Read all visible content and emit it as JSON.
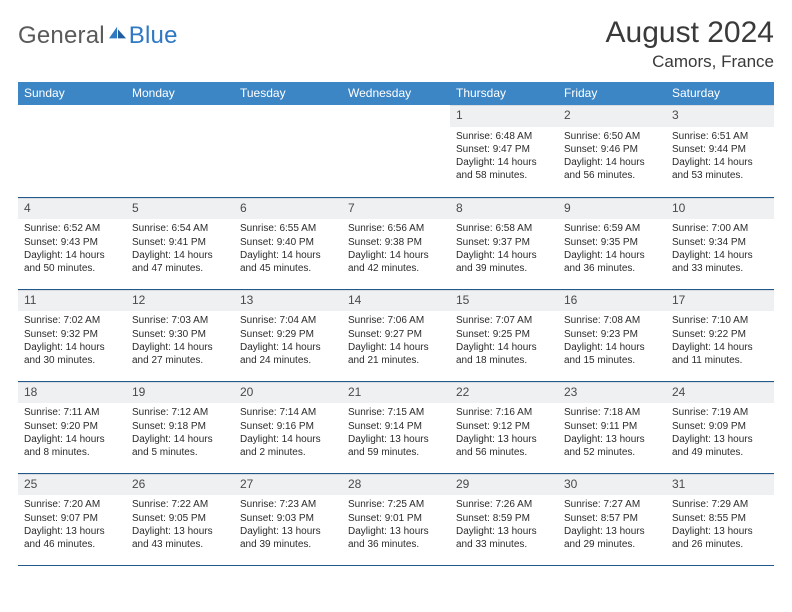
{
  "brand": {
    "word1": "General",
    "word2": "Blue"
  },
  "title": {
    "month": "August 2024",
    "location": "Camors, France"
  },
  "colors": {
    "header_bg": "#3d86c6",
    "header_fg": "#ffffff",
    "daynum_bg": "#eef0f2",
    "rule": "#22598c",
    "logo_gray": "#5a5a5a",
    "logo_blue": "#2f78c2"
  },
  "weekdays": [
    "Sunday",
    "Monday",
    "Tuesday",
    "Wednesday",
    "Thursday",
    "Friday",
    "Saturday"
  ],
  "days": [
    {
      "n": 1,
      "sr": "6:48 AM",
      "ss": "9:47 PM",
      "dl": "14 hours and 58 minutes."
    },
    {
      "n": 2,
      "sr": "6:50 AM",
      "ss": "9:46 PM",
      "dl": "14 hours and 56 minutes."
    },
    {
      "n": 3,
      "sr": "6:51 AM",
      "ss": "9:44 PM",
      "dl": "14 hours and 53 minutes."
    },
    {
      "n": 4,
      "sr": "6:52 AM",
      "ss": "9:43 PM",
      "dl": "14 hours and 50 minutes."
    },
    {
      "n": 5,
      "sr": "6:54 AM",
      "ss": "9:41 PM",
      "dl": "14 hours and 47 minutes."
    },
    {
      "n": 6,
      "sr": "6:55 AM",
      "ss": "9:40 PM",
      "dl": "14 hours and 45 minutes."
    },
    {
      "n": 7,
      "sr": "6:56 AM",
      "ss": "9:38 PM",
      "dl": "14 hours and 42 minutes."
    },
    {
      "n": 8,
      "sr": "6:58 AM",
      "ss": "9:37 PM",
      "dl": "14 hours and 39 minutes."
    },
    {
      "n": 9,
      "sr": "6:59 AM",
      "ss": "9:35 PM",
      "dl": "14 hours and 36 minutes."
    },
    {
      "n": 10,
      "sr": "7:00 AM",
      "ss": "9:34 PM",
      "dl": "14 hours and 33 minutes."
    },
    {
      "n": 11,
      "sr": "7:02 AM",
      "ss": "9:32 PM",
      "dl": "14 hours and 30 minutes."
    },
    {
      "n": 12,
      "sr": "7:03 AM",
      "ss": "9:30 PM",
      "dl": "14 hours and 27 minutes."
    },
    {
      "n": 13,
      "sr": "7:04 AM",
      "ss": "9:29 PM",
      "dl": "14 hours and 24 minutes."
    },
    {
      "n": 14,
      "sr": "7:06 AM",
      "ss": "9:27 PM",
      "dl": "14 hours and 21 minutes."
    },
    {
      "n": 15,
      "sr": "7:07 AM",
      "ss": "9:25 PM",
      "dl": "14 hours and 18 minutes."
    },
    {
      "n": 16,
      "sr": "7:08 AM",
      "ss": "9:23 PM",
      "dl": "14 hours and 15 minutes."
    },
    {
      "n": 17,
      "sr": "7:10 AM",
      "ss": "9:22 PM",
      "dl": "14 hours and 11 minutes."
    },
    {
      "n": 18,
      "sr": "7:11 AM",
      "ss": "9:20 PM",
      "dl": "14 hours and 8 minutes."
    },
    {
      "n": 19,
      "sr": "7:12 AM",
      "ss": "9:18 PM",
      "dl": "14 hours and 5 minutes."
    },
    {
      "n": 20,
      "sr": "7:14 AM",
      "ss": "9:16 PM",
      "dl": "14 hours and 2 minutes."
    },
    {
      "n": 21,
      "sr": "7:15 AM",
      "ss": "9:14 PM",
      "dl": "13 hours and 59 minutes."
    },
    {
      "n": 22,
      "sr": "7:16 AM",
      "ss": "9:12 PM",
      "dl": "13 hours and 56 minutes."
    },
    {
      "n": 23,
      "sr": "7:18 AM",
      "ss": "9:11 PM",
      "dl": "13 hours and 52 minutes."
    },
    {
      "n": 24,
      "sr": "7:19 AM",
      "ss": "9:09 PM",
      "dl": "13 hours and 49 minutes."
    },
    {
      "n": 25,
      "sr": "7:20 AM",
      "ss": "9:07 PM",
      "dl": "13 hours and 46 minutes."
    },
    {
      "n": 26,
      "sr": "7:22 AM",
      "ss": "9:05 PM",
      "dl": "13 hours and 43 minutes."
    },
    {
      "n": 27,
      "sr": "7:23 AM",
      "ss": "9:03 PM",
      "dl": "13 hours and 39 minutes."
    },
    {
      "n": 28,
      "sr": "7:25 AM",
      "ss": "9:01 PM",
      "dl": "13 hours and 36 minutes."
    },
    {
      "n": 29,
      "sr": "7:26 AM",
      "ss": "8:59 PM",
      "dl": "13 hours and 33 minutes."
    },
    {
      "n": 30,
      "sr": "7:27 AM",
      "ss": "8:57 PM",
      "dl": "13 hours and 29 minutes."
    },
    {
      "n": 31,
      "sr": "7:29 AM",
      "ss": "8:55 PM",
      "dl": "13 hours and 26 minutes."
    }
  ],
  "labels": {
    "sunrise": "Sunrise:",
    "sunset": "Sunset:",
    "daylight": "Daylight:"
  },
  "layout": {
    "first_weekday_index": 4,
    "rows": 5,
    "cols": 7
  }
}
